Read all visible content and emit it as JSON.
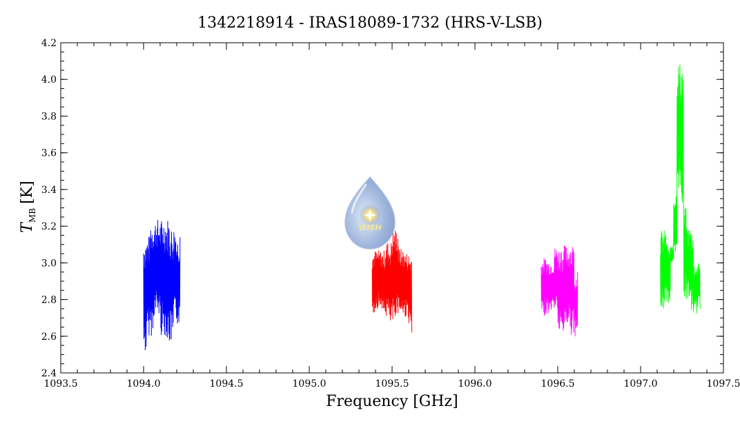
{
  "chart_data": {
    "type": "line",
    "title": "1342218914 - IRAS18089-1732 (HRS-V-LSB)",
    "xlabel": "Frequency [GHz]",
    "ylabel": {
      "symbol": "T",
      "subscript": "MB",
      "unit": "[K]"
    },
    "xlim": [
      1093.5,
      1097.5
    ],
    "ylim": [
      2.4,
      4.2
    ],
    "x_ticks": [
      1093.5,
      1094.0,
      1094.5,
      1095.0,
      1095.5,
      1096.0,
      1096.5,
      1097.0,
      1097.5
    ],
    "x_tick_labels": [
      "1093.5",
      "1094.0",
      "1094.5",
      "1095.0",
      "1095.5",
      "1096.0",
      "1096.5",
      "1097.0",
      "1097.5"
    ],
    "y_ticks": [
      2.4,
      2.6,
      2.8,
      3.0,
      3.2,
      3.4,
      3.6,
      3.8,
      4.0,
      4.2
    ],
    "y_tick_labels": [
      "2.4",
      "2.6",
      "2.8",
      "3.0",
      "3.2",
      "3.4",
      "3.6",
      "3.8",
      "4.0",
      "4.2"
    ],
    "grid": false,
    "series": [
      {
        "color": "#0000ff",
        "x": [
          1094.0,
          1094.02,
          1094.04,
          1094.06,
          1094.08,
          1094.1,
          1094.12,
          1094.14,
          1094.16,
          1094.18,
          1094.2,
          1094.22
        ],
        "y": [
          2.5,
          3.15,
          2.6,
          3.24,
          2.7,
          3.24,
          2.6,
          3.25,
          2.55,
          3.2,
          2.66,
          3.14
        ]
      },
      {
        "color": "#ff0000",
        "x": [
          1095.38,
          1095.4,
          1095.42,
          1095.44,
          1095.46,
          1095.48,
          1095.5,
          1095.52,
          1095.54,
          1095.56,
          1095.58,
          1095.6,
          1095.62
        ],
        "y": [
          2.72,
          3.07,
          2.75,
          3.07,
          2.7,
          3.12,
          2.65,
          3.19,
          2.72,
          3.08,
          2.7,
          3.06,
          2.62
        ]
      },
      {
        "color": "#ff00ff",
        "x": [
          1096.4,
          1096.42,
          1096.44,
          1096.46,
          1096.48,
          1096.5,
          1096.52,
          1096.54,
          1096.56,
          1096.58,
          1096.6,
          1096.62
        ],
        "y": [
          2.7,
          3.03,
          2.72,
          3.02,
          2.74,
          3.09,
          2.6,
          3.1,
          2.65,
          3.11,
          2.6,
          2.95
        ]
      },
      {
        "color": "#00ff00",
        "x": [
          1097.12,
          1097.14,
          1097.16,
          1097.18,
          1097.2,
          1097.22,
          1097.24,
          1097.26,
          1097.28,
          1097.3,
          1097.32,
          1097.34,
          1097.36
        ],
        "y": [
          2.72,
          3.18,
          2.78,
          3.09,
          3.0,
          3.4,
          4.1,
          3.3,
          2.8,
          3.2,
          2.72,
          3.0,
          2.75
        ]
      }
    ]
  },
  "logo": {
    "text": "WISH"
  }
}
